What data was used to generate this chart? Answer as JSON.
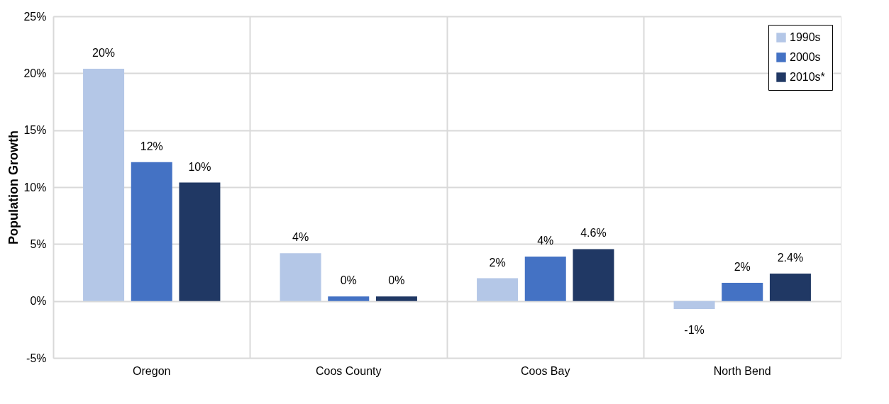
{
  "chart_data": {
    "type": "bar",
    "ylabel": "Population Growth",
    "categories": [
      "Oregon",
      "Coos County",
      "Coos Bay",
      "North Bend"
    ],
    "series": [
      {
        "name": "1990s",
        "color": "#b4c7e7",
        "values": [
          20.4,
          4.2,
          2.0,
          -0.7
        ],
        "value_labels": [
          "20%",
          "4%",
          "2%",
          "-1%"
        ]
      },
      {
        "name": "2000s",
        "color": "#4472c4",
        "values": [
          12.2,
          0.4,
          3.9,
          1.6
        ],
        "value_labels": [
          "12%",
          "0%",
          "4%",
          "2%"
        ]
      },
      {
        "name": "2010s*",
        "color": "#203864",
        "values": [
          10.4,
          0.4,
          4.56,
          2.4
        ],
        "value_labels": [
          "10%",
          "0%",
          "4.6%",
          "2.4%"
        ]
      }
    ],
    "ylim": [
      -5,
      25
    ],
    "yticks": [
      {
        "value": -5,
        "label": "-5%"
      },
      {
        "value": 0,
        "label": "0%"
      },
      {
        "value": 5,
        "label": "5%"
      },
      {
        "value": 10,
        "label": "10%"
      },
      {
        "value": 15,
        "label": "15%"
      },
      {
        "value": 20,
        "label": "20%"
      },
      {
        "value": 25,
        "label": "25%"
      }
    ],
    "grid": true,
    "legend": "top right"
  }
}
